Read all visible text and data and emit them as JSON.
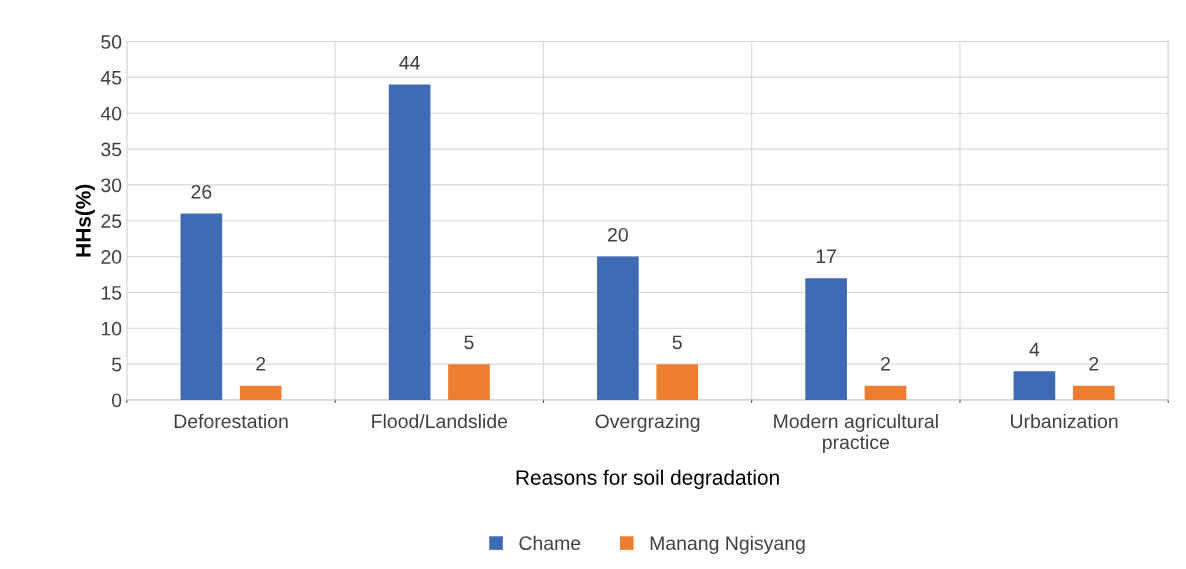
{
  "chart_data": {
    "type": "bar",
    "xlabel": "Reasons for soil degradation",
    "ylabel": "HHs(%)",
    "categories": [
      "Deforestation",
      "Flood/Landslide",
      "Overgrazing",
      "Modern agricultural\npractice",
      "Urbanization"
    ],
    "series": [
      {
        "name": "Chame",
        "color": "#3e6bb4",
        "values": [
          26,
          44,
          20,
          17,
          4
        ]
      },
      {
        "name": "Manang Ngisyang",
        "color": "#ed7d31",
        "values": [
          2,
          5,
          5,
          2,
          2
        ]
      }
    ],
    "ylim": [
      0,
      50
    ],
    "yticks": [
      0,
      5,
      10,
      15,
      20,
      25,
      30,
      35,
      40,
      45,
      50
    ],
    "grid": true,
    "legend": "bottom",
    "data_labels": true
  }
}
